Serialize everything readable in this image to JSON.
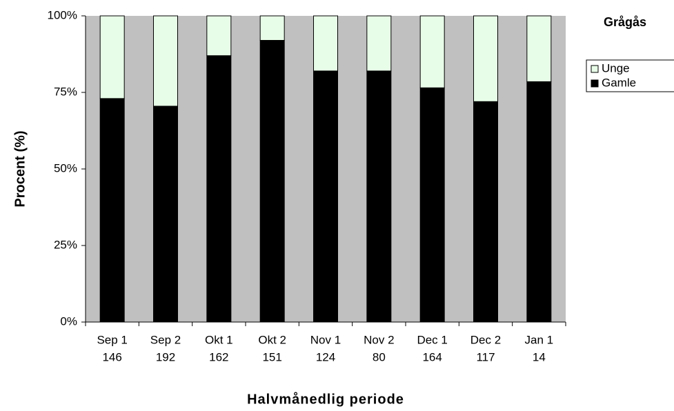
{
  "chart_data": {
    "type": "stacked_bar_percent",
    "title": "Grågås",
    "categories": [
      "Sep 1",
      "Sep 2",
      "Okt 1",
      "Okt 2",
      "Nov 1",
      "Nov 2",
      "Dec 1",
      "Dec 2",
      "Jan 1"
    ],
    "sample_sizes": [
      146,
      192,
      162,
      151,
      124,
      80,
      164,
      117,
      14
    ],
    "series": [
      {
        "name": "Gamle",
        "color": "#000000",
        "values": [
          73,
          70.5,
          87,
          92,
          82,
          82,
          76.5,
          72,
          78.5
        ]
      },
      {
        "name": "Unge",
        "color": "#e8fde8",
        "values": [
          27,
          29.5,
          13,
          8,
          18,
          18,
          23.5,
          28,
          21.5
        ]
      }
    ],
    "ylim": [
      0,
      100
    ],
    "yticks": [
      {
        "value": 0,
        "label": "0%"
      },
      {
        "value": 25,
        "label": "25%"
      },
      {
        "value": 50,
        "label": "50%"
      },
      {
        "value": 75,
        "label": "75%"
      },
      {
        "value": 100,
        "label": "100%"
      }
    ],
    "y_label": "Procent (%)",
    "x_label": "Halvmånedlig periode",
    "plot_background": "#c0c0c0",
    "legend_position": "right"
  }
}
